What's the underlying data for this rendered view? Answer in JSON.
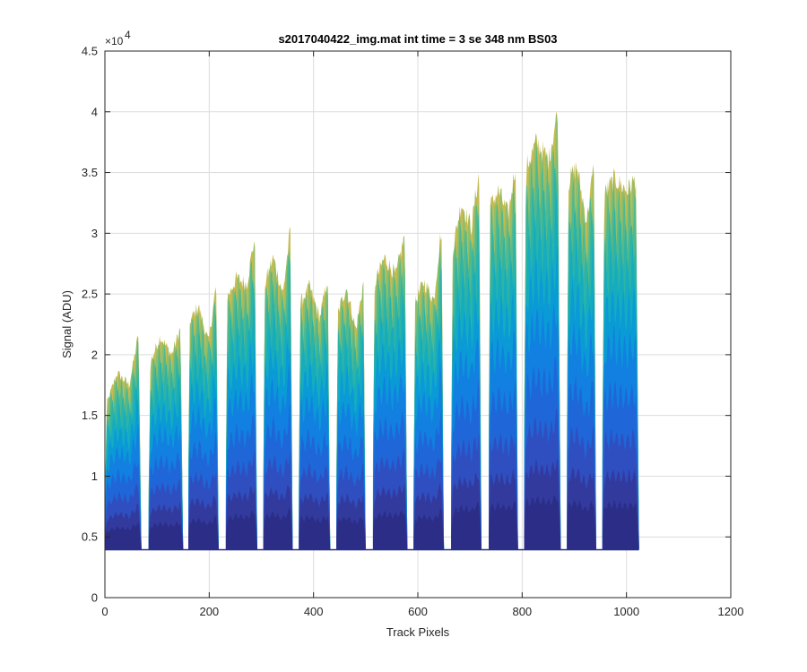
{
  "chart_data": {
    "type": "area",
    "title": "s2017040422_img.mat int time = 3 se  348 nm BS03",
    "xlabel": "Track Pixels",
    "ylabel": "Signal (ADU)",
    "xlim": [
      0,
      1200
    ],
    "ylim": [
      0,
      45000
    ],
    "grid": true,
    "x_ticks": [
      0,
      200,
      400,
      600,
      800,
      1000,
      1200
    ],
    "x_tick_labels": [
      "0",
      "200",
      "400",
      "600",
      "800",
      "1000",
      "1200"
    ],
    "y_ticks": [
      0,
      5000,
      10000,
      15000,
      20000,
      25000,
      30000,
      35000,
      40000,
      45000
    ],
    "y_tick_labels": [
      "0",
      "0.5",
      "1",
      "1.5",
      "2",
      "2.5",
      "3",
      "3.5",
      "4",
      "4.5"
    ],
    "y_exponent_label": "×10",
    "y_exponent_power": "4",
    "baseline": 4000,
    "x_max": 1024,
    "band_colors": [
      "#2b2d86",
      "#323a9e",
      "#2f4fc0",
      "#1f66d8",
      "#1180e0",
      "#0a9ad6",
      "#16acc0",
      "#2cb4a6",
      "#52b98e",
      "#8fbe6a",
      "#c5bb52"
    ],
    "band_fractions": [
      0.12,
      0.2,
      0.3,
      0.42,
      0.55,
      0.66,
      0.76,
      0.84,
      0.91,
      0.96,
      1.0
    ],
    "segments": [
      {
        "start": 0,
        "end": 70,
        "rise": [
          15500,
          18500,
          17500,
          23000
        ],
        "peak": 23000
      },
      {
        "start": 84,
        "end": 150,
        "rise": [
          19000,
          21500,
          20000,
          22800
        ],
        "peak": 22800
      },
      {
        "start": 160,
        "end": 218,
        "rise": [
          22500,
          24000,
          21000,
          27300
        ],
        "peak": 27300
      },
      {
        "start": 232,
        "end": 292,
        "rise": [
          24500,
          26300,
          25800,
          31000
        ],
        "peak": 31000
      },
      {
        "start": 304,
        "end": 360,
        "rise": [
          25500,
          28000,
          25000,
          32000
        ],
        "peak": 32000
      },
      {
        "start": 372,
        "end": 432,
        "rise": [
          24000,
          25600,
          23000,
          27400
        ],
        "peak": 27400
      },
      {
        "start": 444,
        "end": 500,
        "rise": [
          23000,
          25600,
          22000,
          27200
        ],
        "peak": 27200
      },
      {
        "start": 514,
        "end": 580,
        "rise": [
          25500,
          28000,
          26500,
          31000
        ],
        "peak": 31000
      },
      {
        "start": 592,
        "end": 650,
        "rise": [
          24000,
          26000,
          24500,
          32500
        ],
        "peak": 32500
      },
      {
        "start": 664,
        "end": 722,
        "rise": [
          28000,
          32500,
          30500,
          36500
        ],
        "peak": 36500
      },
      {
        "start": 736,
        "end": 792,
        "rise": [
          32000,
          33500,
          31500,
          37000
        ],
        "peak": 37000
      },
      {
        "start": 804,
        "end": 874,
        "rise": [
          35000,
          37500,
          36000,
          41500
        ],
        "peak": 41500
      },
      {
        "start": 886,
        "end": 942,
        "rise": [
          34000,
          35500,
          31000,
          37000
        ],
        "peak": 37000
      },
      {
        "start": 954,
        "end": 1024,
        "rise": [
          33000,
          34500,
          33500,
          34800
        ],
        "peak": 34800
      }
    ]
  }
}
